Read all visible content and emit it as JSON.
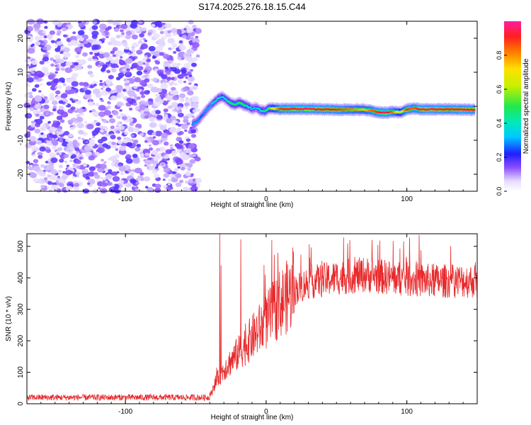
{
  "title": "S174.2025.276.18.15.C44",
  "chart_data": [
    {
      "type": "heatmap",
      "xlabel": "Height of straight line (km)",
      "ylabel": "Frequency (Hz)",
      "xlim": [
        -170,
        150
      ],
      "ylim": [
        -25,
        25
      ],
      "xticks": [
        -100,
        0,
        100
      ],
      "yticks": [
        -20,
        -10,
        0,
        10,
        20
      ],
      "noise_region_x": [
        -170,
        -48
      ],
      "ridge": {
        "x": [
          -52,
          -49,
          -46,
          -43,
          -40,
          -37,
          -34,
          -31,
          -28,
          -25,
          -22,
          -19,
          -16,
          -13,
          -10,
          -7,
          -4,
          -1,
          2,
          10,
          30,
          50,
          70,
          75,
          80,
          85,
          90,
          95,
          100,
          105,
          110,
          120,
          130,
          140,
          148
        ],
        "freq": [
          -5.2,
          -4.5,
          -3,
          -1.5,
          0,
          1.2,
          2.3,
          2.8,
          1.8,
          0.8,
          0.5,
          1.0,
          0.4,
          0,
          -0.8,
          -0.4,
          -1.2,
          -1.5,
          -0.6,
          -0.8,
          -0.8,
          -1.0,
          -1.0,
          -1.3,
          -1.8,
          -1.9,
          -1.6,
          -1.8,
          -1.0,
          -0.6,
          -0.9,
          -0.9,
          -0.9,
          -1.0,
          -1.0
        ],
        "amplitude": [
          0.3,
          0.3,
          0.25,
          0.3,
          0.3,
          0.35,
          0.4,
          0.35,
          0.4,
          0.5,
          0.45,
          0.5,
          0.5,
          0.4,
          0.35,
          0.3,
          0.4,
          0.45,
          0.5,
          0.9,
          0.95,
          0.9,
          0.75,
          0.85,
          0.9,
          0.95,
          0.85,
          0.6,
          0.9,
          0.85,
          0.95,
          0.95,
          0.9,
          0.95,
          0.9
        ]
      },
      "colorbar": {
        "label": "Normalized spectral amplitude",
        "ticks": [
          0.0,
          0.2,
          0.4,
          0.6,
          0.8
        ],
        "range": [
          0,
          1
        ]
      }
    },
    {
      "type": "line",
      "xlabel": "Height of straight line (km)",
      "ylabel": "SNR (10 * v/v)",
      "xlim": [
        -170,
        150
      ],
      "ylim": [
        0,
        540
      ],
      "xticks": [
        -100,
        0,
        100
      ],
      "yticks": [
        0,
        100,
        200,
        300,
        400,
        500
      ],
      "color": "#e8282a",
      "trend": {
        "x": [
          -170,
          -40,
          -37,
          -30,
          -20,
          -10,
          0,
          10,
          20,
          30,
          50,
          70,
          100,
          120,
          150
        ],
        "y": [
          20,
          20,
          60,
          110,
          160,
          210,
          260,
          320,
          360,
          385,
          400,
          410,
          395,
          390,
          390
        ]
      },
      "spikes": [
        {
          "x": -33,
          "y": 540
        },
        {
          "x": -32,
          "y": 440
        },
        {
          "x": -18,
          "y": 522
        },
        {
          "x": 4,
          "y": 520
        }
      ]
    }
  ]
}
